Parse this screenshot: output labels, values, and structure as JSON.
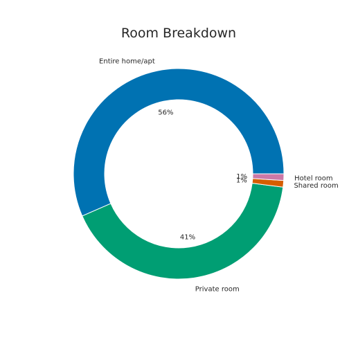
{
  "chart_data": {
    "type": "pie",
    "title": "Room Breakdown",
    "donut": true,
    "categories": [
      "Entire home/apt",
      "Private room",
      "Shared room",
      "Hotel room"
    ],
    "values": [
      56,
      41,
      1,
      1
    ],
    "percent_labels": [
      "56%",
      "41%",
      "1%",
      "1%"
    ],
    "colors": [
      "#0072b2",
      "#009e73",
      "#d55e00",
      "#cc79a7"
    ],
    "start_angle_deg": 0,
    "direction": "counterclockwise",
    "legend": "none"
  }
}
